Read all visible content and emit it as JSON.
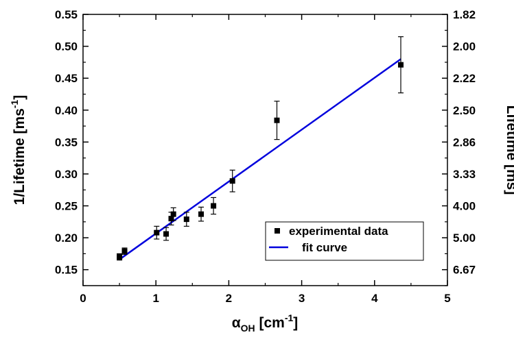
{
  "chart_data": {
    "type": "scatter",
    "x_axis": {
      "label_main": "α",
      "label_sub": "OH",
      "label_unit_open": " [cm",
      "label_unit_sup": "-1",
      "label_unit_close": "]",
      "range": [
        0,
        5
      ],
      "ticks": [
        "0",
        "1",
        "2",
        "3",
        "4",
        "5"
      ]
    },
    "y_axis_left": {
      "label_main": "1/Lifetime [ms",
      "label_sup": "-1",
      "label_close": "]",
      "range": [
        0.125,
        0.55
      ],
      "ticks": [
        "0.15",
        "0.20",
        "0.25",
        "0.30",
        "0.35",
        "0.40",
        "0.45",
        "0.50",
        "0.55"
      ]
    },
    "y_axis_right": {
      "label": "Lifetime [ms]",
      "ticks": [
        "6.67",
        "5.00",
        "4.00",
        "3.33",
        "2.86",
        "2.50",
        "2.22",
        "2.00",
        "1.82"
      ]
    },
    "series": [
      {
        "name": "experimental data",
        "marker": "square",
        "color": "#000000",
        "points": [
          {
            "x": 0.5,
            "y": 0.17,
            "err": 0.005
          },
          {
            "x": 0.57,
            "y": 0.179,
            "err": 0.005
          },
          {
            "x": 1.01,
            "y": 0.208,
            "err": 0.01
          },
          {
            "x": 1.14,
            "y": 0.206,
            "err": 0.01
          },
          {
            "x": 1.21,
            "y": 0.23,
            "err": 0.01
          },
          {
            "x": 1.24,
            "y": 0.237,
            "err": 0.01
          },
          {
            "x": 1.42,
            "y": 0.229,
            "err": 0.011
          },
          {
            "x": 1.62,
            "y": 0.237,
            "err": 0.011
          },
          {
            "x": 1.79,
            "y": 0.25,
            "err": 0.013
          },
          {
            "x": 2.05,
            "y": 0.289,
            "err": 0.017
          },
          {
            "x": 2.66,
            "y": 0.384,
            "err": 0.03
          },
          {
            "x": 4.36,
            "y": 0.471,
            "err": 0.044
          }
        ]
      },
      {
        "name": "fit curve",
        "type": "line",
        "color": "#0000dd",
        "x": [
          0.5,
          4.36
        ],
        "y": [
          0.166,
          0.48
        ]
      }
    ],
    "legend": {
      "position": "bottom-right",
      "entries": [
        "experimental data",
        "fit curve"
      ]
    }
  }
}
